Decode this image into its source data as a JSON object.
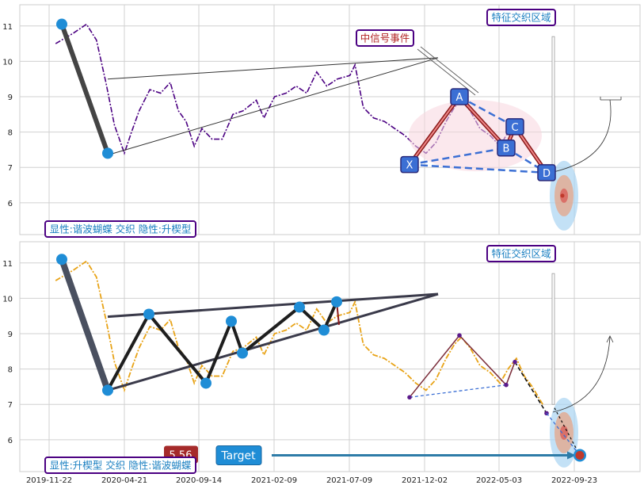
{
  "chart_data": [
    {
      "type": "line",
      "panel": "top",
      "ylim": [
        5.1,
        11.6
      ],
      "yticks": [
        6,
        7,
        8,
        9,
        10,
        11
      ],
      "grid": true,
      "series": [
        {
          "color": "#4b0082",
          "style": "dash-dot",
          "points": [
            [
              "2019-12-05",
              10.5
            ],
            [
              "2020-01-10",
              10.8
            ],
            [
              "2020-02-05",
              11.05
            ],
            [
              "2020-02-25",
              10.6
            ],
            [
              "2020-03-15",
              9.4
            ],
            [
              "2020-04-01",
              8.2
            ],
            [
              "2020-04-21",
              7.4
            ],
            [
              "2020-05-05",
              8.0
            ],
            [
              "2020-05-20",
              8.6
            ],
            [
              "2020-06-10",
              9.2
            ],
            [
              "2020-07-01",
              9.1
            ],
            [
              "2020-07-20",
              9.4
            ],
            [
              "2020-08-05",
              8.6
            ],
            [
              "2020-08-20",
              8.3
            ],
            [
              "2020-09-05",
              7.6
            ],
            [
              "2020-09-20",
              8.1
            ],
            [
              "2020-10-10",
              7.8
            ],
            [
              "2020-10-30",
              7.8
            ],
            [
              "2020-11-20",
              8.5
            ],
            [
              "2020-12-10",
              8.6
            ],
            [
              "2021-01-05",
              8.9
            ],
            [
              "2021-01-20",
              8.4
            ],
            [
              "2021-02-10",
              9.0
            ],
            [
              "2021-03-05",
              9.1
            ],
            [
              "2021-03-25",
              9.3
            ],
            [
              "2021-04-15",
              9.1
            ],
            [
              "2021-05-05",
              9.7
            ],
            [
              "2021-05-25",
              9.3
            ],
            [
              "2021-06-15",
              9.5
            ],
            [
              "2021-07-10",
              9.6
            ],
            [
              "2021-07-20",
              9.9
            ],
            [
              "2021-08-05",
              8.7
            ],
            [
              "2021-08-25",
              8.4
            ],
            [
              "2021-09-15",
              8.3
            ],
            [
              "2021-10-05",
              8.1
            ],
            [
              "2021-10-25",
              7.9
            ],
            [
              "2021-11-15",
              7.6
            ],
            [
              "2021-12-05",
              7.4
            ],
            [
              "2021-12-25",
              7.7
            ],
            [
              "2022-01-15",
              8.3
            ],
            [
              "2022-02-01",
              8.7
            ],
            [
              "2022-02-15",
              8.9
            ],
            [
              "2022-03-05",
              8.6
            ],
            [
              "2022-03-25",
              8.1
            ],
            [
              "2022-04-15",
              7.9
            ],
            [
              "2022-05-05",
              7.6
            ],
            [
              "2022-05-20",
              8.0
            ],
            [
              "2022-06-05",
              8.3
            ],
            [
              "2022-06-20",
              7.8
            ],
            [
              "2022-07-05",
              7.5
            ],
            [
              "2022-07-25",
              7.0
            ]
          ]
        }
      ],
      "boxes": [
        {
          "text": "显性:谐波蝴蝶 交织 隐性:升楔型",
          "color": "#1a7fc1",
          "border": "#4b0082"
        },
        {
          "text": "特征交织区域",
          "color": "#1a7fc1",
          "border": "#4b0082"
        },
        {
          "text": "中信号事件",
          "color": "#b22222",
          "border": "#4b0082"
        }
      ],
      "pattern_labels": [
        "X",
        "A",
        "B",
        "C",
        "D"
      ]
    },
    {
      "type": "line",
      "panel": "bottom",
      "ylim": [
        5.1,
        11.6
      ],
      "yticks": [
        6,
        7,
        8,
        9,
        10,
        11
      ],
      "grid": true,
      "xticks": [
        "2019-11-22",
        "2020-04-21",
        "2020-09-14",
        "2021-02-09",
        "2021-07-09",
        "2021-12-02",
        "2022-05-03",
        "2022-09-23"
      ],
      "series": [
        {
          "color": "#e8a317",
          "style": "dash-dot",
          "points": [
            [
              "2019-12-05",
              10.5
            ],
            [
              "2020-01-10",
              10.8
            ],
            [
              "2020-02-05",
              11.05
            ],
            [
              "2020-02-25",
              10.6
            ],
            [
              "2020-03-15",
              9.4
            ],
            [
              "2020-04-01",
              8.2
            ],
            [
              "2020-04-21",
              7.4
            ],
            [
              "2020-05-05",
              8.0
            ],
            [
              "2020-05-20",
              8.6
            ],
            [
              "2020-06-10",
              9.2
            ],
            [
              "2020-07-01",
              9.1
            ],
            [
              "2020-07-20",
              9.4
            ],
            [
              "2020-08-05",
              8.6
            ],
            [
              "2020-08-20",
              8.3
            ],
            [
              "2020-09-05",
              7.6
            ],
            [
              "2020-09-20",
              8.1
            ],
            [
              "2020-10-10",
              7.8
            ],
            [
              "2020-10-30",
              7.8
            ],
            [
              "2020-11-20",
              8.5
            ],
            [
              "2020-12-10",
              8.6
            ],
            [
              "2021-01-05",
              8.9
            ],
            [
              "2021-01-20",
              8.4
            ],
            [
              "2021-02-10",
              9.0
            ],
            [
              "2021-03-05",
              9.1
            ],
            [
              "2021-03-25",
              9.3
            ],
            [
              "2021-04-15",
              9.1
            ],
            [
              "2021-05-05",
              9.7
            ],
            [
              "2021-05-25",
              9.3
            ],
            [
              "2021-06-15",
              9.5
            ],
            [
              "2021-07-10",
              9.6
            ],
            [
              "2021-07-20",
              9.9
            ],
            [
              "2021-08-05",
              8.7
            ],
            [
              "2021-08-25",
              8.4
            ],
            [
              "2021-09-15",
              8.3
            ],
            [
              "2021-10-05",
              8.1
            ],
            [
              "2021-10-25",
              7.9
            ],
            [
              "2021-11-15",
              7.6
            ],
            [
              "2021-12-05",
              7.4
            ],
            [
              "2021-12-25",
              7.7
            ],
            [
              "2022-01-15",
              8.3
            ],
            [
              "2022-02-01",
              8.7
            ],
            [
              "2022-02-15",
              8.9
            ],
            [
              "2022-03-05",
              8.6
            ],
            [
              "2022-03-25",
              8.1
            ],
            [
              "2022-04-15",
              7.9
            ],
            [
              "2022-05-05",
              7.6
            ],
            [
              "2022-05-20",
              8.0
            ],
            [
              "2022-06-05",
              8.3
            ],
            [
              "2022-06-20",
              7.8
            ],
            [
              "2022-07-05",
              7.5
            ],
            [
              "2022-07-25",
              7.0
            ]
          ]
        }
      ],
      "boxes": [
        {
          "text": "显性:升楔型 交织 隐性:谐波蝴蝶",
          "color": "#1a7fc1",
          "border": "#4b0082"
        },
        {
          "text": "特征交织区域",
          "color": "#1a7fc1",
          "border": "#4b0082"
        }
      ],
      "price_tag": "5.56",
      "target_label": "Target",
      "target_value": 5.56
    }
  ]
}
